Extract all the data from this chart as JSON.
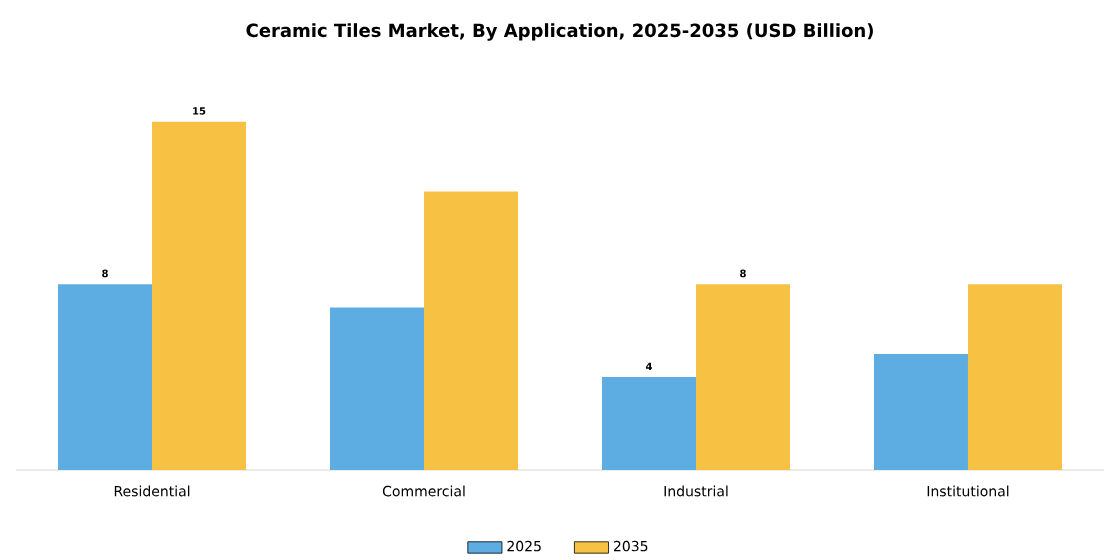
{
  "chart_data": {
    "type": "bar",
    "title": "Ceramic Tiles Market, By Application, 2025-2035 (USD Billion)",
    "categories": [
      "Residential",
      "Commercial",
      "Industrial",
      "Institutional"
    ],
    "series": [
      {
        "name": "2025",
        "color": "#5dade2",
        "values": [
          8,
          7,
          4,
          5
        ],
        "value_labels": [
          "8",
          null,
          "4",
          null
        ]
      },
      {
        "name": "2035",
        "color": "#f7c244",
        "values": [
          15,
          12,
          8,
          8
        ],
        "value_labels": [
          "15",
          null,
          "8",
          null
        ]
      }
    ],
    "tick_labels": "x",
    "grid": false,
    "legend": "bottom"
  }
}
